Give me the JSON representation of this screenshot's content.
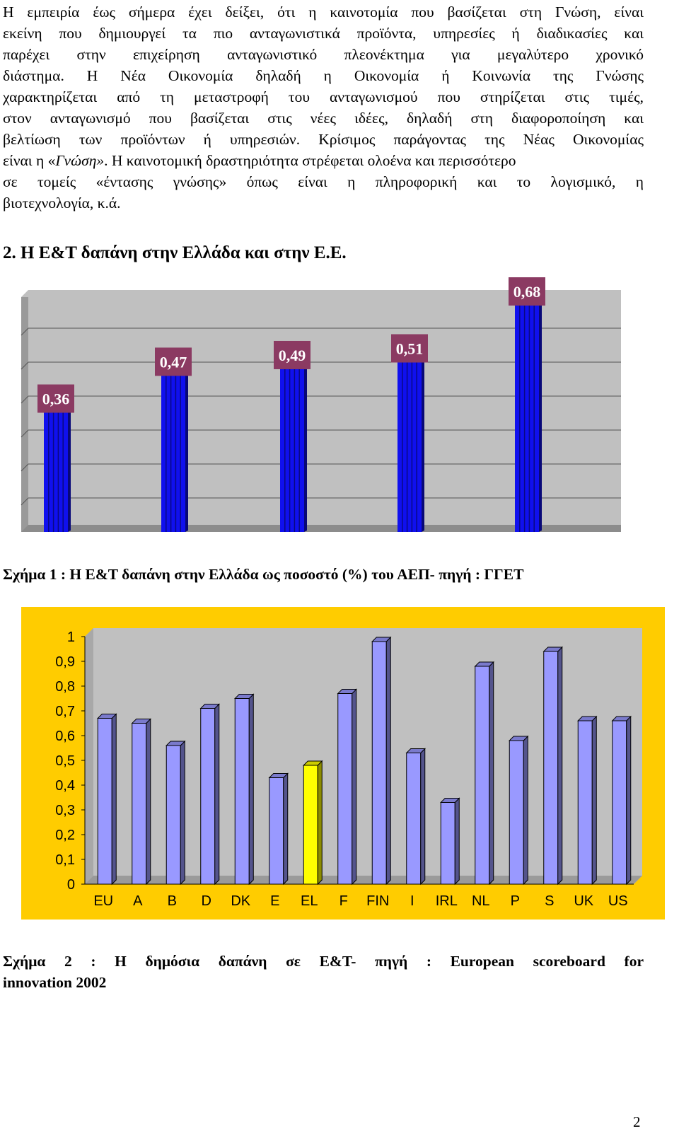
{
  "paragraph_lines": [
    "Η εμπειρία έως σήμερα έχει δείξει, ότι η καινοτομία που βασίζεται στη Γνώση, είναι",
    "εκείνη που δημιουργεί τα πιο ανταγωνιστικά προϊόντα, υπηρεσίες ή διαδικασίες και",
    "παρέχει στην επιχείρηση ανταγωνιστικό πλεονέκτημα για μεγαλύτερο χρονικό",
    "διάστημα. Η Νέα Οικονομία δηλαδή η Οικονομία ή Κοινωνία της Γνώσης",
    "χαρακτηρίζεται από τη μεταστροφή του ανταγωνισμού που στηρίζεται στις τιμές,",
    "στον ανταγωνισμό που βασίζεται στις νέες ιδέες, δηλαδή στη διαφοροποίηση και",
    "βελτίωση των προϊόντων ή υπηρεσιών. Κρίσιμος παράγοντας της Νέας Οικονομίας",
    "είναι η «",
    "Γνώση»",
    ". Η καινοτομική δραστηριότητα στρέφεται ολοένα και περισσότερο",
    "σε τομείς «έντασης γνώσης» όπως είναι η πληροφορική και το λογισμικό, η",
    "βιοτεχνολογία, κ.ά."
  ],
  "heading": "2. Η Ε&Τ δαπάνη στην Ελλάδα και στην Ε.Ε.",
  "caption1": "Σχήμα 1 : Η Ε&Τ δαπάνη στην Ελλάδα ως ποσοστό (%) του ΑΕΠ- πηγή : ΓΓΕΤ",
  "caption2_line1": "Σχήμα 2 : Η δημόσια δαπάνη σε Ε&Τ- πηγή : European scoreboard for",
  "caption2_line2": "innovation 2002",
  "page_number": "2",
  "chart_data": [
    {
      "type": "bar",
      "values": [
        0.36,
        0.47,
        0.49,
        0.51,
        0.68
      ],
      "data_labels": [
        "0,36",
        "0,47",
        "0,49",
        "0,51",
        "0,68"
      ],
      "bar_color": "#1010ee",
      "label_box_color": "#8b3a62",
      "plot_background": "#c0c0c0"
    },
    {
      "type": "bar",
      "categories": [
        "EU",
        "A",
        "B",
        "D",
        "DK",
        "E",
        "EL",
        "F",
        "FIN",
        "I",
        "IRL",
        "NL",
        "P",
        "S",
        "UK",
        "US"
      ],
      "values": [
        0.67,
        0.65,
        0.56,
        0.71,
        0.75,
        0.43,
        0.48,
        0.77,
        0.98,
        0.53,
        0.33,
        0.88,
        0.58,
        0.94,
        0.66,
        0.66
      ],
      "highlight": "EL",
      "ylim": [
        0,
        1
      ],
      "yticks": [
        "0",
        "0,1",
        "0,2",
        "0,3",
        "0,4",
        "0,5",
        "0,6",
        "0,7",
        "0,8",
        "0,9",
        "1"
      ],
      "bar_color": "#9999ff",
      "highlight_color": "#ffff00",
      "frame_color": "#ffcc00",
      "plot_background": "#c0c0c0"
    }
  ]
}
